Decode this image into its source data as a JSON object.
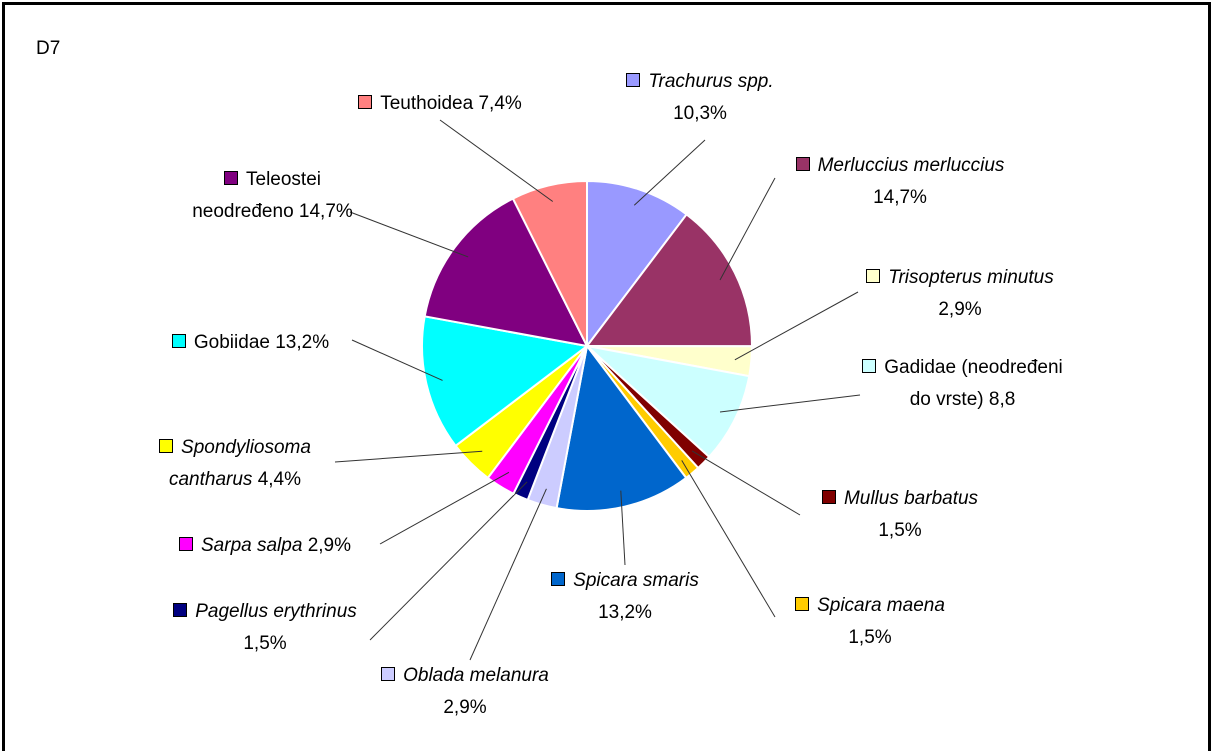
{
  "chart_data": {
    "type": "pie",
    "title": "D7",
    "categories": [
      "Trachurus spp.",
      "Merluccius merluccius",
      "Trisopterus minutus",
      "Gadidae (neodređeni do vrste)",
      "Mullus barbatus",
      "Spicara maena",
      "Spicara smaris",
      "Oblada melanura",
      "Pagellus erythrinus",
      "Sarpa salpa",
      "Spondyliosoma cantharus",
      "Gobiidae",
      "Teleostei neodređeno",
      "Teuthoidea"
    ],
    "values": [
      10.3,
      14.7,
      2.9,
      8.8,
      1.5,
      1.5,
      13.2,
      2.9,
      1.5,
      2.9,
      4.4,
      13.2,
      14.7,
      7.4
    ],
    "value_labels": [
      "10,3%",
      "14,7%",
      "2,9%",
      "8,8",
      "1,5%",
      "1,5%",
      "13,2%",
      "2,9%",
      "1,5%",
      "2,9%",
      "4,4%",
      "13,2%",
      "14,7%",
      "7,4%"
    ],
    "colors": [
      "#9999ff",
      "#993366",
      "#ffffcc",
      "#ccffff",
      "#800000",
      "#ffcc00",
      "#0066cc",
      "#ccccff",
      "#000080",
      "#ff00ff",
      "#ffff00",
      "#00ffff",
      "#800080",
      "#ff8080"
    ],
    "italic": [
      true,
      true,
      true,
      false,
      true,
      true,
      true,
      true,
      true,
      true,
      true,
      false,
      false,
      false
    ]
  }
}
